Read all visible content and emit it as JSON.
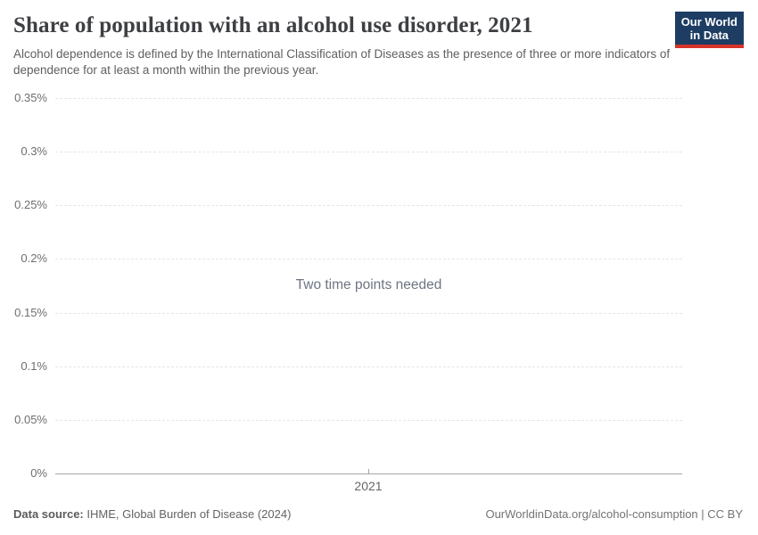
{
  "header": {
    "title": "Share of population with an alcohol use disorder, 2021",
    "subtitle": "Alcohol dependence is defined by the International Classification of Diseases as the presence of three or more indicators of dependence for at least a month within the previous year.",
    "logo": {
      "line1": "Our World",
      "line2": "in Data",
      "bg_color": "#1d3d63",
      "accent_color": "#d7342a"
    }
  },
  "chart_data": {
    "type": "line",
    "title": "Share of population with an alcohol use disorder, 2021",
    "message": "Two time points needed",
    "series": [],
    "x_ticks": [
      "2021"
    ],
    "y_ticks": [
      "0%",
      "0.05%",
      "0.1%",
      "0.15%",
      "0.2%",
      "0.25%",
      "0.3%",
      "0.35%"
    ],
    "ylim": [
      0,
      0.35
    ],
    "y_unit": "%",
    "grid": "horizontal-dashed",
    "gridline_color": "#e6e6e6",
    "axis_line_color": "#a5a5a5"
  },
  "footer": {
    "source_label": "Data source:",
    "source_value": "IHME, Global Burden of Disease (2024)",
    "credit": "OurWorldinData.org/alcohol-consumption | CC BY"
  }
}
